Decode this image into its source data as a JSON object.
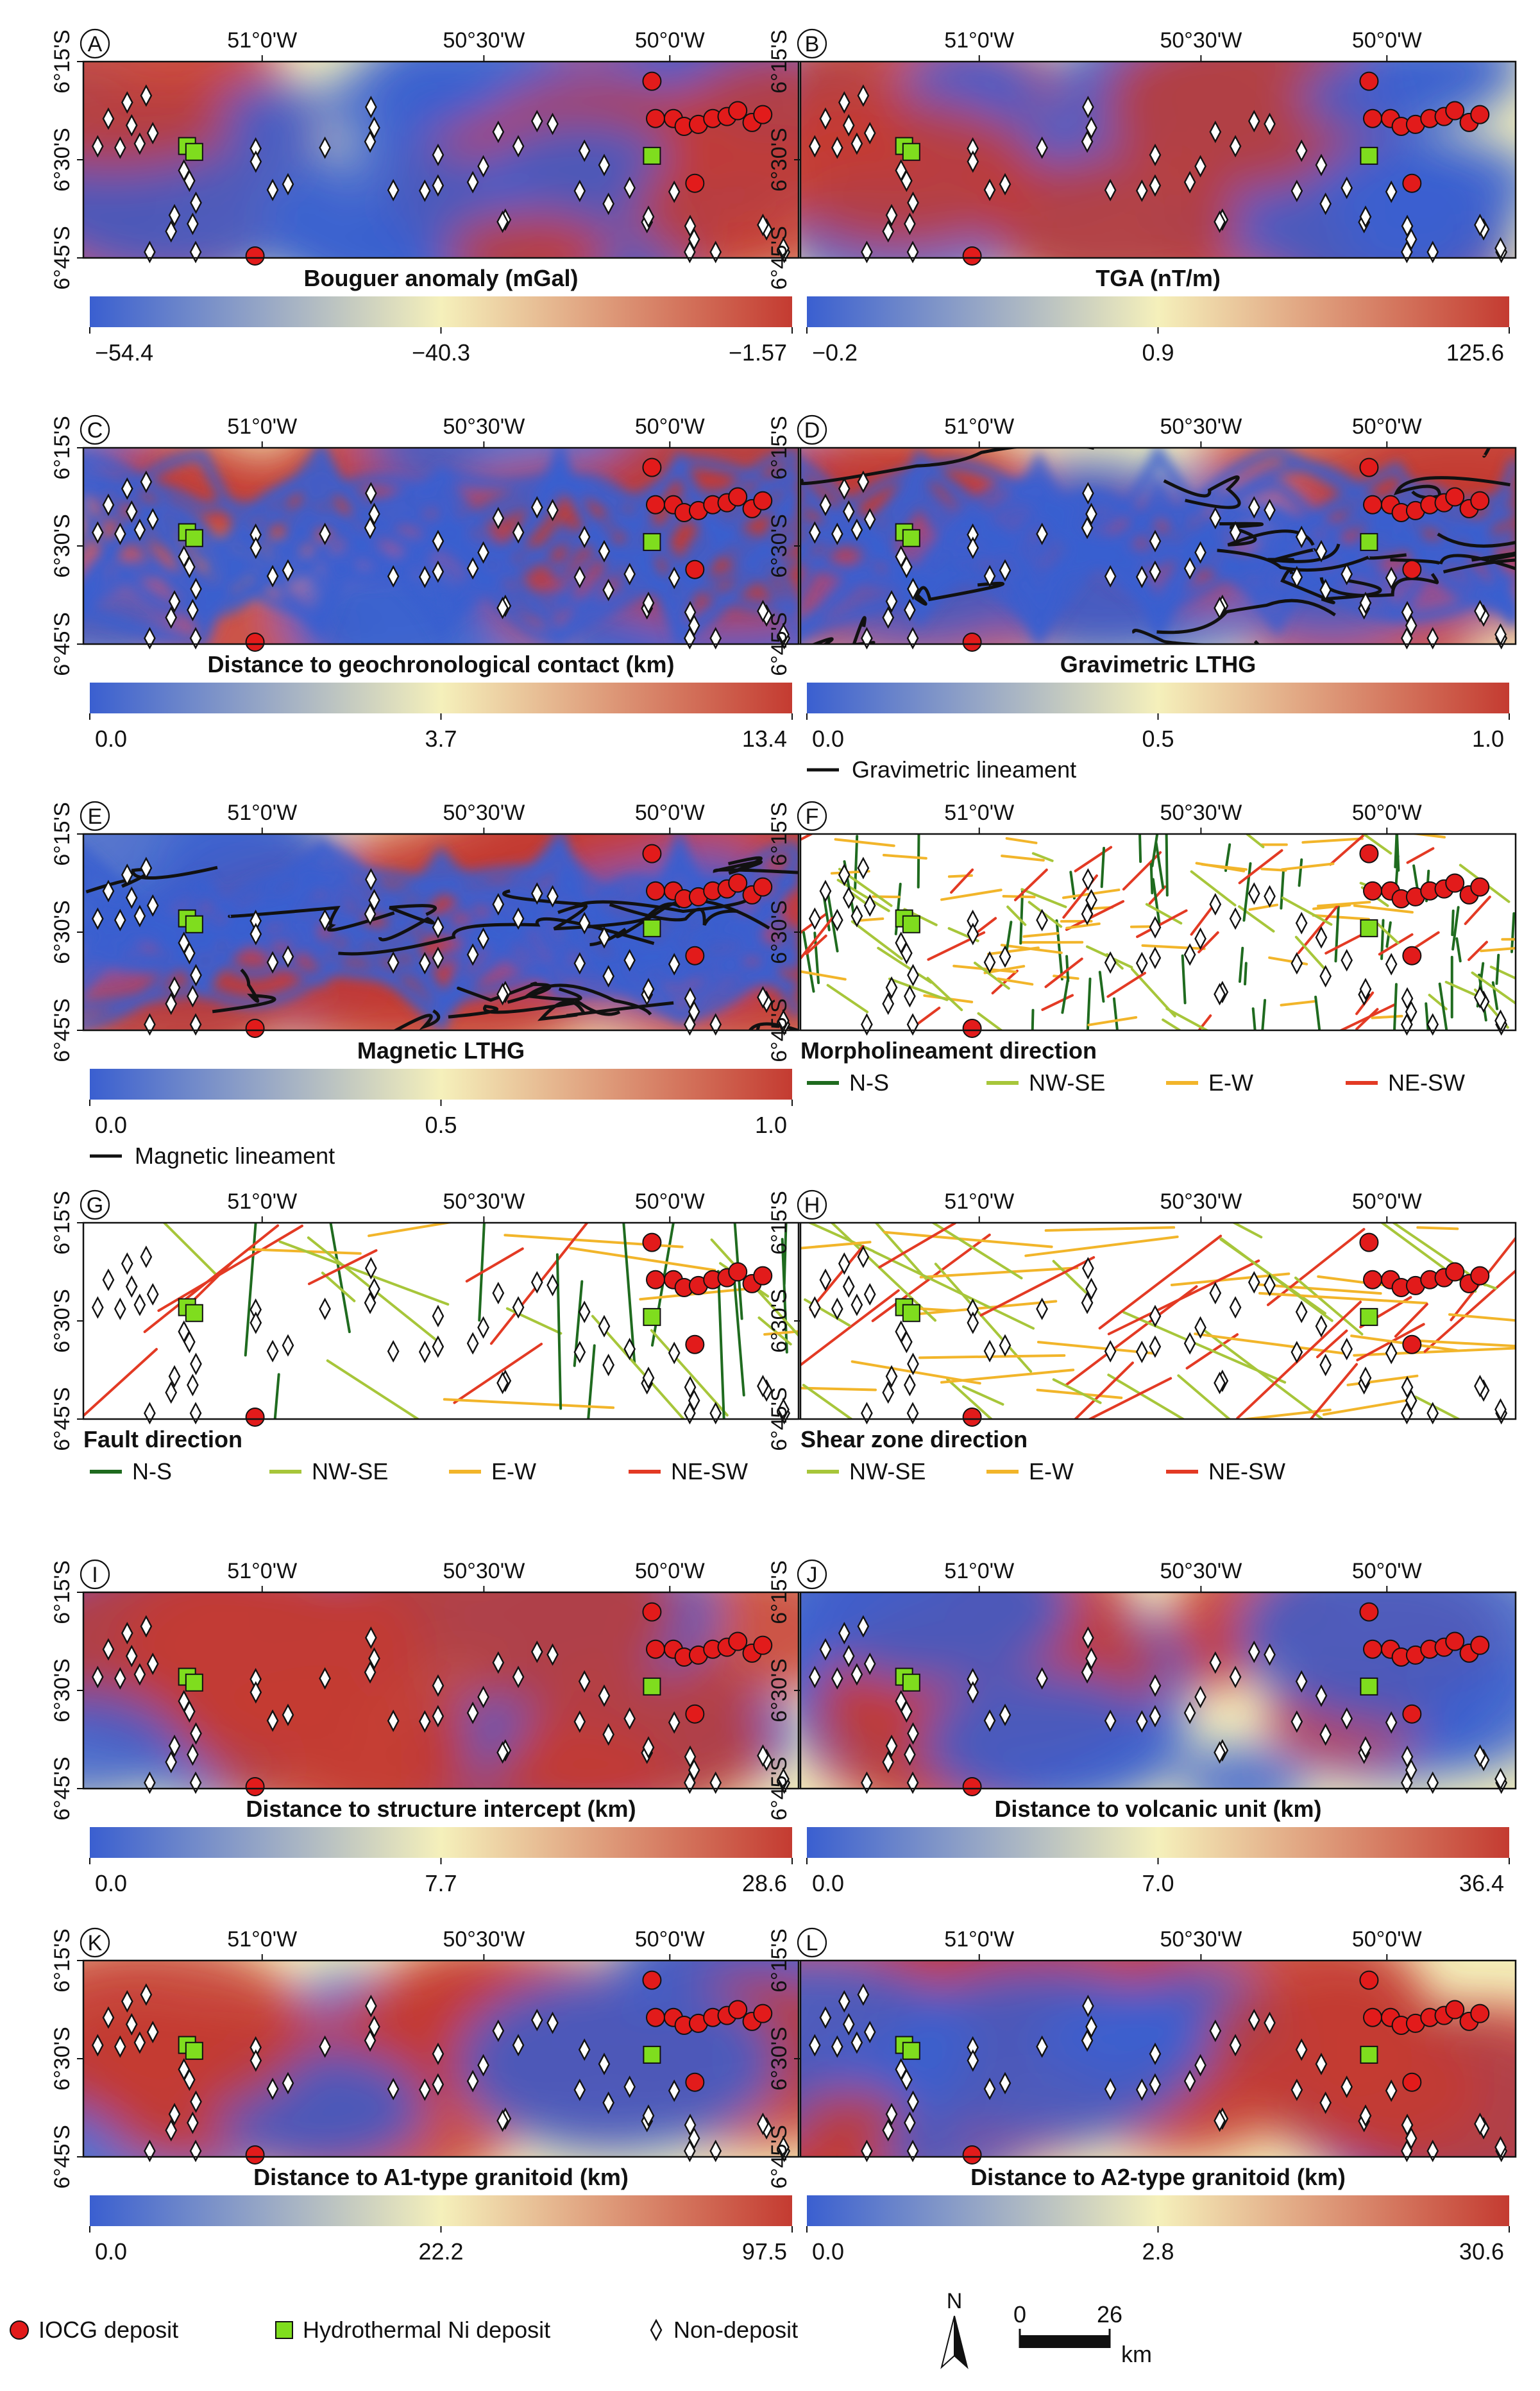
{
  "palette": {
    "low": "#3a5fd0",
    "mid": "#f5f0bb",
    "high": "#c43b31",
    "iocg": "#e21b1b",
    "ni": "#7fdd1e",
    "ns": "#1f6b1f",
    "nwse": "#a7c63a",
    "ew": "#f2b52a",
    "nesw": "#e33a24",
    "line": "#111111"
  },
  "axes": {
    "lon_labels": [
      "51°0'W",
      "50°30'W",
      "50°0'W"
    ],
    "lat_labels": [
      "6°15'S",
      "6°30'S",
      "6°45'S"
    ]
  },
  "panels": [
    {
      "letter": "A",
      "title": "Bouguer anomaly (mGal)",
      "kind": "raster",
      "ticks": [
        "−54.4",
        "−40.3",
        "−1.57"
      ]
    },
    {
      "letter": "B",
      "title": "TGA (nT/m)",
      "kind": "raster",
      "ticks": [
        "−0.2",
        "0.9",
        "125.6"
      ]
    },
    {
      "letter": "C",
      "title": "Distance to geochronological contact (km)",
      "kind": "raster",
      "ticks": [
        "0.0",
        "3.7",
        "13.4"
      ]
    },
    {
      "letter": "D",
      "title": "Gravimetric LTHG",
      "kind": "raster",
      "ticks": [
        "0.0",
        "0.5",
        "1.0"
      ],
      "line_legend": "Gravimetric lineament"
    },
    {
      "letter": "E",
      "title": "Magnetic LTHG",
      "kind": "raster",
      "ticks": [
        "0.0",
        "0.5",
        "1.0"
      ],
      "line_legend": "Magnetic lineament"
    },
    {
      "letter": "F",
      "title": "Morpholineament direction",
      "kind": "lines",
      "classes": [
        "N-S",
        "NW-SE",
        "E-W",
        "NE-SW"
      ]
    },
    {
      "letter": "G",
      "title": "Fault direction",
      "kind": "lines",
      "classes": [
        "N-S",
        "NW-SE",
        "E-W",
        "NE-SW"
      ]
    },
    {
      "letter": "H",
      "title": "Shear zone direction",
      "kind": "lines",
      "classes": [
        "NW-SE",
        "E-W",
        "NE-SW"
      ]
    },
    {
      "letter": "I",
      "title": "Distance to structure intercept (km)",
      "kind": "raster",
      "ticks": [
        "0.0",
        "7.7",
        "28.6"
      ]
    },
    {
      "letter": "J",
      "title": "Distance to volcanic unit (km)",
      "kind": "raster",
      "ticks": [
        "0.0",
        "7.0",
        "36.4"
      ]
    },
    {
      "letter": "K",
      "title": "Distance to A1-type granitoid (km)",
      "kind": "raster",
      "ticks": [
        "0.0",
        "22.2",
        "97.5"
      ]
    },
    {
      "letter": "L",
      "title": "Distance to A2-type granitoid (km)",
      "kind": "raster",
      "ticks": [
        "0.0",
        "2.8",
        "30.6"
      ]
    }
  ],
  "legend": {
    "iocg": "IOCG deposit",
    "ni": "Hydrothermal Ni deposit",
    "non": "Non-deposit",
    "north": "N",
    "scale_min": "0",
    "scale_max": "26",
    "scale_unit": "km"
  }
}
